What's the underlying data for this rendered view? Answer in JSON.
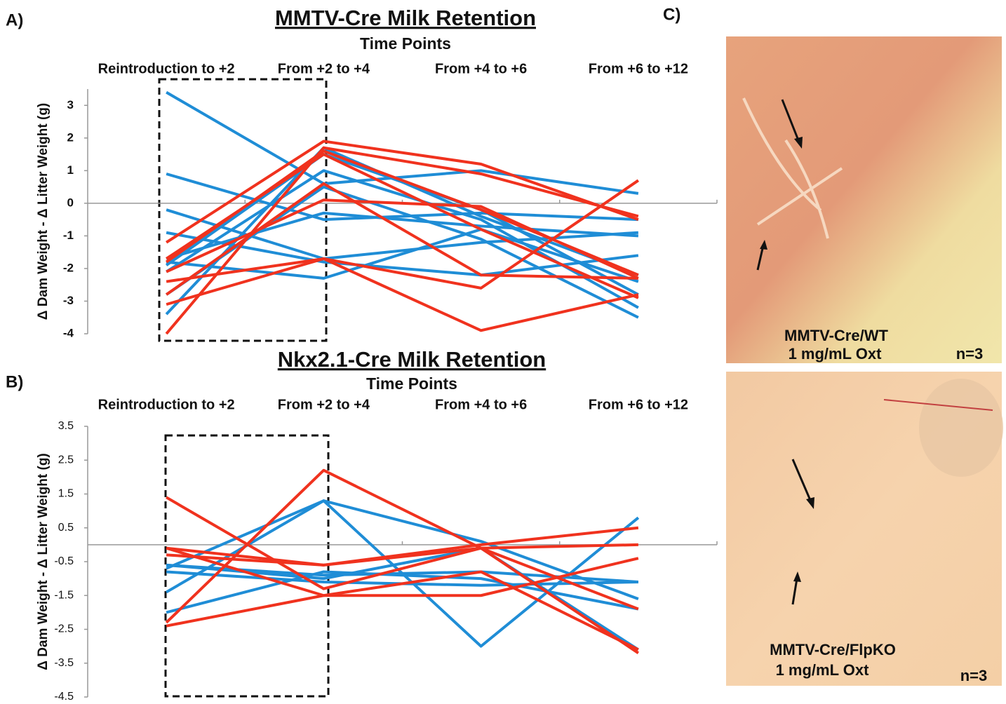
{
  "panel_labels": [
    "A)",
    "B)",
    "C)"
  ],
  "chart_data": [
    {
      "type": "line",
      "title": "MMTV-Cre Milk Retention",
      "subtitle": "Time Points",
      "y_label": "Δ Dam Weight - Δ Litter Weight (g)",
      "categories": [
        "Reintroduction to +2",
        "From +2 to +4",
        "From +4 to +6",
        "From +6 to +12"
      ],
      "ylim": [
        -4,
        3.5
      ],
      "yticks": [
        -4,
        -3,
        -2,
        -1,
        0,
        1,
        2,
        3
      ],
      "series": [
        {
          "color": "#1f8dd6",
          "values": [
            3.4,
            0.6,
            1.0,
            0.3
          ]
        },
        {
          "color": "#1f8dd6",
          "values": [
            0.9,
            -0.5,
            -0.3,
            -0.5
          ]
        },
        {
          "color": "#1f8dd6",
          "values": [
            -0.2,
            -1.7,
            -1.2,
            -0.9
          ]
        },
        {
          "color": "#1f8dd6",
          "values": [
            -0.9,
            -1.8,
            -2.2,
            -1.6
          ]
        },
        {
          "color": "#1f8dd6",
          "values": [
            -1.8,
            -2.3,
            -0.8,
            -2.4
          ]
        },
        {
          "color": "#1f8dd6",
          "values": [
            -1.9,
            1.5,
            -0.2,
            -2.8
          ]
        },
        {
          "color": "#1f8dd6",
          "values": [
            -2.1,
            1.0,
            -0.5,
            -3.2
          ]
        },
        {
          "color": "#1f8dd6",
          "values": [
            -2.8,
            0.5,
            -1.1,
            -3.5
          ]
        },
        {
          "color": "#1f8dd6",
          "values": [
            -3.4,
            1.7,
            -0.4,
            -2.2
          ]
        },
        {
          "color": "#1f8dd6",
          "values": [
            -1.7,
            -0.3,
            -0.7,
            -1.0
          ]
        },
        {
          "color": "#f0321e",
          "values": [
            -1.2,
            1.9,
            1.2,
            -0.5
          ]
        },
        {
          "color": "#f0321e",
          "values": [
            -1.8,
            1.6,
            -0.2,
            -2.2
          ]
        },
        {
          "color": "#f0321e",
          "values": [
            -2.1,
            0.1,
            -0.1,
            -2.3
          ]
        },
        {
          "color": "#f0321e",
          "values": [
            -2.4,
            -1.7,
            -2.6,
            0.7
          ]
        },
        {
          "color": "#f0321e",
          "values": [
            -3.1,
            -1.7,
            -3.9,
            -2.8
          ]
        },
        {
          "color": "#f0321e",
          "values": [
            -4.0,
            1.7,
            0.9,
            -0.4
          ]
        },
        {
          "color": "#f0321e",
          "values": [
            -1.7,
            1.5,
            -0.8,
            -2.9
          ]
        },
        {
          "color": "#f0321e",
          "values": [
            -2.8,
            0.6,
            -2.2,
            -2.3
          ]
        }
      ]
    },
    {
      "type": "line",
      "title": "Nkx2.1-Cre Milk Retention",
      "subtitle": "Time Points",
      "y_label": "Δ Dam Weight - Δ Litter Weight (g)",
      "categories": [
        "Reintroduction to +2",
        "From +2 to +4",
        "From +4 to +6",
        "From +6 to +12"
      ],
      "ylim": [
        -4.5,
        3.5
      ],
      "yticks": [
        -4.5,
        -3.5,
        -2.5,
        -1.5,
        -0.5,
        0.5,
        1.5,
        2.5,
        3.5
      ],
      "series": [
        {
          "color": "#1f8dd6",
          "values": [
            -0.7,
            1.3,
            0.1,
            -1.6
          ]
        },
        {
          "color": "#1f8dd6",
          "values": [
            -0.6,
            -0.9,
            -0.8,
            -1.1
          ]
        },
        {
          "color": "#1f8dd6",
          "values": [
            -0.8,
            -1.1,
            -1.2,
            -1.1
          ]
        },
        {
          "color": "#1f8dd6",
          "values": [
            -1.4,
            1.3,
            -3.0,
            0.8
          ]
        },
        {
          "color": "#1f8dd6",
          "values": [
            -2.0,
            -0.8,
            -1.0,
            -1.9
          ]
        },
        {
          "color": "#1f8dd6",
          "values": [
            -0.6,
            -1.0,
            -0.1,
            -3.1
          ]
        },
        {
          "color": "#f0321e",
          "values": [
            1.4,
            -1.3,
            -0.1,
            -3.2
          ]
        },
        {
          "color": "#f0321e",
          "values": [
            -0.1,
            -0.6,
            -0.1,
            0.0
          ]
        },
        {
          "color": "#f0321e",
          "values": [
            -0.3,
            -0.6,
            0.0,
            0.5
          ]
        },
        {
          "color": "#f0321e",
          "values": [
            -2.3,
            2.2,
            -0.1,
            -1.9
          ]
        },
        {
          "color": "#f0321e",
          "values": [
            -2.4,
            -1.5,
            -1.5,
            -0.4
          ]
        },
        {
          "color": "#f0321e",
          "values": [
            -0.1,
            -1.5,
            -0.8,
            -3.1
          ]
        }
      ]
    }
  ],
  "photos": [
    {
      "caption": [
        "MMTV-Cre/WT",
        "1 mg/mL Oxt"
      ],
      "n": "n=3"
    },
    {
      "caption": [
        "MMTV-Cre/FlpKO",
        "1 mg/mL Oxt"
      ],
      "n": "n=3"
    }
  ]
}
